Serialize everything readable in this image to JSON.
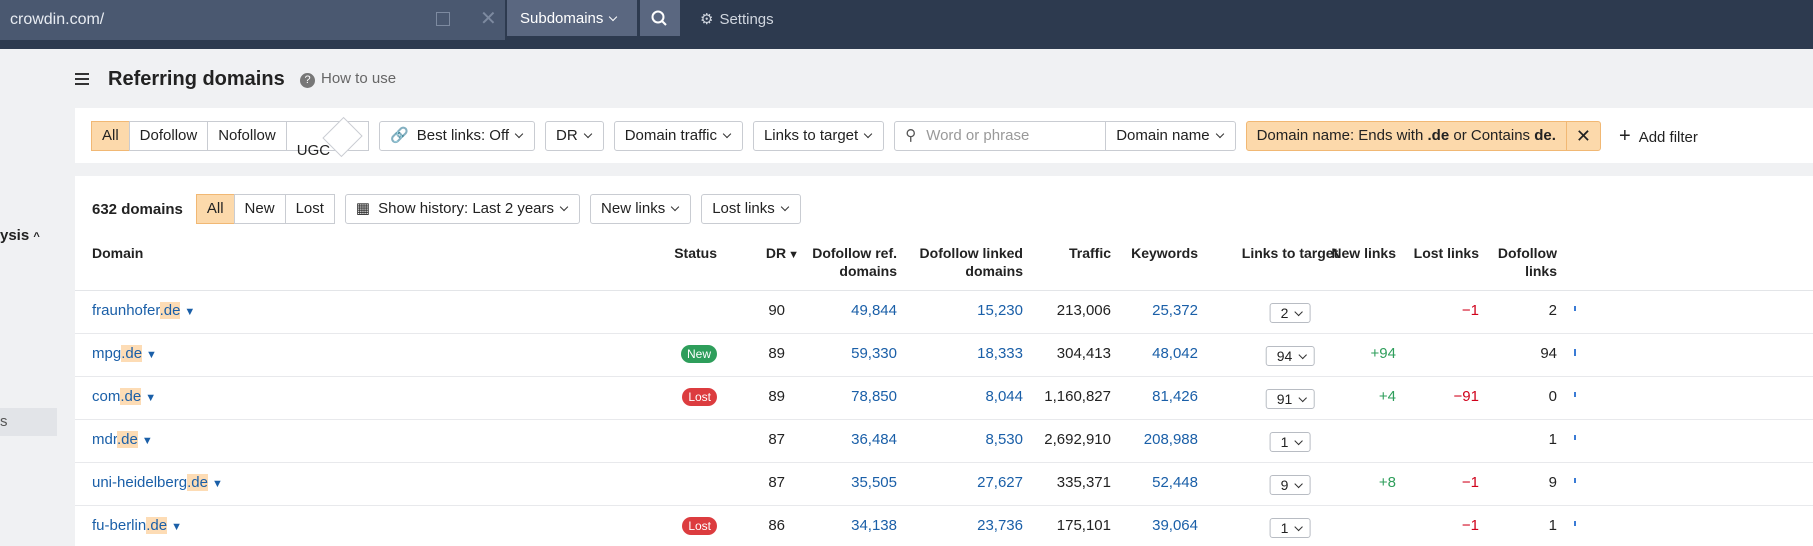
{
  "topbar": {
    "url": "crowdin.com/",
    "mode": "Subdomains",
    "settings": "Settings"
  },
  "sidebar": {
    "section": "ysis",
    "item": "s"
  },
  "header": {
    "title": "Referring domains",
    "help": "How to use"
  },
  "filters": {
    "tabs": [
      "All",
      "Dofollow",
      "Nofollow",
      "UGC"
    ],
    "buttons": [
      "Best links: Off",
      "DR",
      "Domain traffic",
      "Links to target"
    ],
    "search_placeholder": "Word or phrase",
    "search_mode": "Domain name",
    "active_filter": [
      "Domain name: Ends with ",
      ".de",
      " or Contains ",
      "de."
    ],
    "add_filter": "Add filter"
  },
  "summary": {
    "count": "632 domains",
    "tabs": [
      "All",
      "New",
      "Lost"
    ],
    "buttons": [
      "Show history: Last 2 years",
      "New links",
      "Lost links"
    ]
  },
  "table": {
    "headers": [
      "Domain",
      "Status",
      "DR",
      "Dofollow ref. domains",
      "Dofollow linked domains",
      "Traffic",
      "Keywords",
      "Links to target",
      "New links",
      "Lost links",
      "Dofollow links"
    ],
    "rows": [
      [
        "fraunhofer",
        ".de",
        null,
        "90",
        "49,844",
        "15,230",
        "213,006",
        "25,372",
        "2",
        null,
        "−1",
        "2"
      ],
      [
        "mpg",
        ".de",
        "New",
        "89",
        "59,330",
        "18,333",
        "304,413",
        "48,042",
        "94",
        "+94",
        null,
        "94"
      ],
      [
        "com",
        ".de",
        "Lost",
        "89",
        "78,850",
        "8,044",
        "1,160,827",
        "81,426",
        "91",
        "+4",
        "−91",
        "0"
      ],
      [
        "mdr",
        ".de",
        null,
        "87",
        "36,484",
        "8,530",
        "2,692,910",
        "208,988",
        "1",
        null,
        null,
        "1"
      ],
      [
        "uni-heidelberg",
        ".de",
        null,
        "87",
        "35,505",
        "27,627",
        "335,371",
        "52,448",
        "9",
        "+8",
        "−1",
        "9"
      ],
      [
        "fu-berlin",
        ".de",
        "Lost",
        "86",
        "34,138",
        "23,736",
        "175,101",
        "39,064",
        "1",
        null,
        "−1",
        "1"
      ]
    ]
  }
}
